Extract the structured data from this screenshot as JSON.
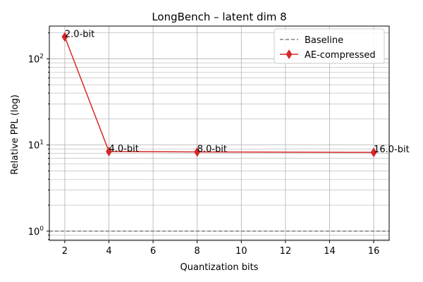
{
  "chart_data": {
    "type": "line",
    "title": "LongBench – latent dim 8",
    "xlabel": "Quantization bits",
    "ylabel": "Relative PPL (log)",
    "yscale": "log",
    "xlim": [
      1.3,
      16.7
    ],
    "ylim": [
      0.78,
      240
    ],
    "xticks": [
      2,
      4,
      6,
      8,
      10,
      12,
      14,
      16
    ],
    "xtick_labels": [
      "2",
      "4",
      "6",
      "8",
      "10",
      "12",
      "14",
      "16"
    ],
    "yticks": [
      1,
      10,
      100
    ],
    "grid": true,
    "legend_position": "top-right",
    "series": [
      {
        "name": "AE-compressed",
        "color": "#d62728",
        "marker": "thin-diamond",
        "x": [
          2,
          4,
          8,
          16
        ],
        "y": [
          180,
          8.4,
          8.3,
          8.2
        ],
        "point_labels": [
          "2.0-bit",
          "4.0-bit",
          "8.0-bit",
          "16.0-bit"
        ]
      }
    ],
    "reference_lines": [
      {
        "name": "Baseline",
        "y": 1.0,
        "color": "#808080",
        "style": "dashed"
      }
    ]
  }
}
